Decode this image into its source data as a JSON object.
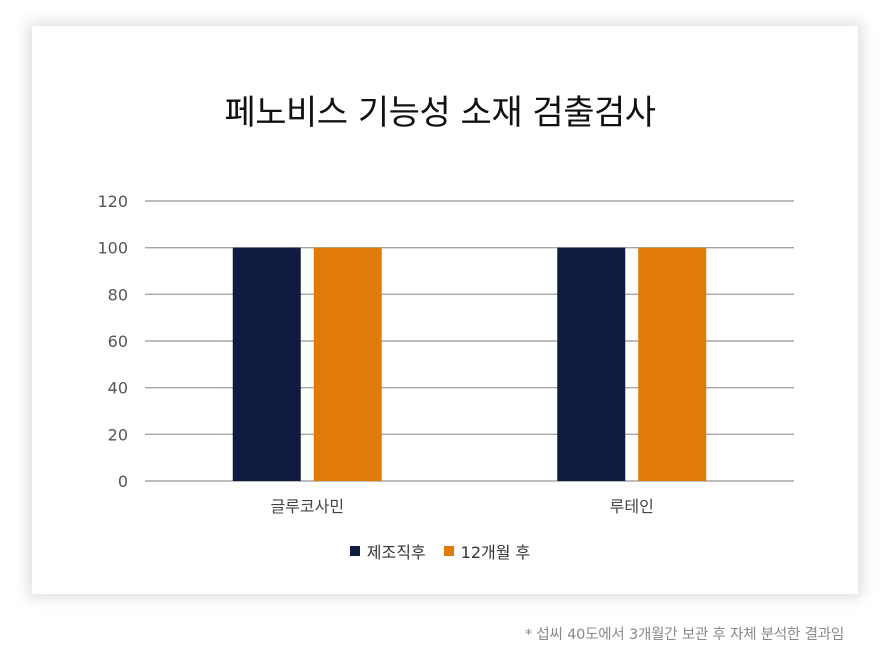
{
  "chart_data": {
    "type": "bar",
    "title": "페노비스 기능성 소재 검출검사",
    "categories": [
      "글루코사민",
      "루테인"
    ],
    "series": [
      {
        "name": "제조직후",
        "values": [
          100,
          100
        ],
        "color": "#0f1c3f"
      },
      {
        "name": "12개월 후",
        "values": [
          100,
          100
        ],
        "color": "#e07b08"
      }
    ],
    "ylim": [
      0,
      120
    ],
    "yticks": [
      "0",
      "20",
      "40",
      "60",
      "80",
      "100",
      "120"
    ],
    "xlabel": "",
    "ylabel": "",
    "grid": true,
    "legend": "bottom"
  },
  "footnote": "* 섭씨 40도에서 3개월간 보관 후 자체 분석한 결과임"
}
